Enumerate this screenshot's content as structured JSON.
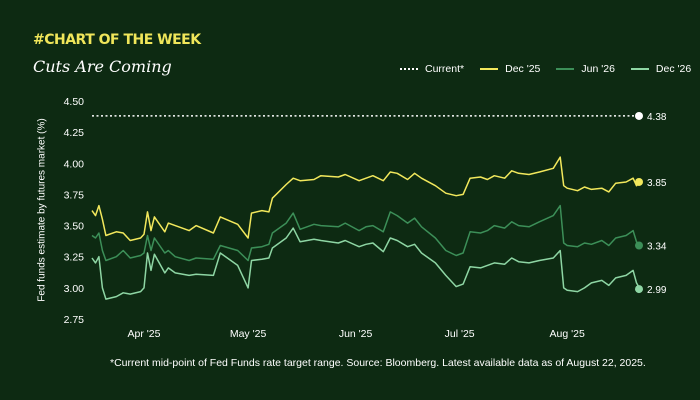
{
  "header": {
    "tag": "#CHART OF THE WEEK",
    "subtitle": "Cuts Are Coming"
  },
  "footnote": "*Current mid-point of Fed Funds rate target range. Source: Bloomberg. Latest available data as of August 22, 2025.",
  "colors": {
    "background": "#0d2a12",
    "current": "#ffffff",
    "dec25": "#f2e85c",
    "jun26": "#3c8f58",
    "dec26": "#8ed6a4"
  },
  "chart_data": {
    "type": "line",
    "ylabel": "Fed funds estimate by futures market (%)",
    "ylim": [
      2.75,
      4.5
    ],
    "yticks": [
      "4.50",
      "4.25",
      "4.00",
      "3.75",
      "3.50",
      "3.25",
      "3.00",
      "2.75"
    ],
    "xticks": [
      {
        "label": "Apr '25",
        "date": "2025-04-01"
      },
      {
        "label": "May '25",
        "date": "2025-05-01"
      },
      {
        "label": "Jun '25",
        "date": "2025-06-01"
      },
      {
        "label": "Jul '25",
        "date": "2025-07-01"
      },
      {
        "label": "Aug '25",
        "date": "2025-08-01"
      }
    ],
    "x_range": [
      "2025-03-17",
      "2025-08-22"
    ],
    "legend_position": "top-right",
    "grid": false,
    "series": [
      {
        "name": "Current*",
        "key": "current",
        "dashed": true,
        "end_label": "4.38",
        "points": [
          [
            "2025-03-17",
            4.38
          ],
          [
            "2025-08-22",
            4.38
          ]
        ]
      },
      {
        "name": "Dec '25",
        "key": "dec25",
        "end_label": "3.85",
        "points": [
          [
            "2025-03-17",
            3.62
          ],
          [
            "2025-03-18",
            3.58
          ],
          [
            "2025-03-19",
            3.66
          ],
          [
            "2025-03-20",
            3.55
          ],
          [
            "2025-03-21",
            3.42
          ],
          [
            "2025-03-24",
            3.45
          ],
          [
            "2025-03-26",
            3.44
          ],
          [
            "2025-03-28",
            3.38
          ],
          [
            "2025-03-31",
            3.4
          ],
          [
            "2025-04-01",
            3.43
          ],
          [
            "2025-04-02",
            3.61
          ],
          [
            "2025-04-03",
            3.46
          ],
          [
            "2025-04-04",
            3.57
          ],
          [
            "2025-04-07",
            3.45
          ],
          [
            "2025-04-08",
            3.52
          ],
          [
            "2025-04-10",
            3.5
          ],
          [
            "2025-04-14",
            3.46
          ],
          [
            "2025-04-16",
            3.5
          ],
          [
            "2025-04-21",
            3.44
          ],
          [
            "2025-04-23",
            3.57
          ],
          [
            "2025-04-28",
            3.51
          ],
          [
            "2025-05-01",
            3.4
          ],
          [
            "2025-05-02",
            3.6
          ],
          [
            "2025-05-05",
            3.62
          ],
          [
            "2025-05-07",
            3.61
          ],
          [
            "2025-05-08",
            3.72
          ],
          [
            "2025-05-12",
            3.83
          ],
          [
            "2025-05-14",
            3.88
          ],
          [
            "2025-05-16",
            3.86
          ],
          [
            "2025-05-20",
            3.87
          ],
          [
            "2025-05-22",
            3.9
          ],
          [
            "2025-05-27",
            3.89
          ],
          [
            "2025-05-29",
            3.91
          ],
          [
            "2025-06-02",
            3.86
          ],
          [
            "2025-06-04",
            3.88
          ],
          [
            "2025-06-06",
            3.9
          ],
          [
            "2025-06-09",
            3.86
          ],
          [
            "2025-06-11",
            3.93
          ],
          [
            "2025-06-13",
            3.92
          ],
          [
            "2025-06-16",
            3.87
          ],
          [
            "2025-06-18",
            3.92
          ],
          [
            "2025-06-20",
            3.88
          ],
          [
            "2025-06-24",
            3.82
          ],
          [
            "2025-06-27",
            3.76
          ],
          [
            "2025-06-30",
            3.74
          ],
          [
            "2025-07-02",
            3.75
          ],
          [
            "2025-07-04",
            3.88
          ],
          [
            "2025-07-07",
            3.89
          ],
          [
            "2025-07-09",
            3.87
          ],
          [
            "2025-07-11",
            3.9
          ],
          [
            "2025-07-14",
            3.88
          ],
          [
            "2025-07-16",
            3.94
          ],
          [
            "2025-07-18",
            3.92
          ],
          [
            "2025-07-21",
            3.91
          ],
          [
            "2025-07-24",
            3.93
          ],
          [
            "2025-07-28",
            3.96
          ],
          [
            "2025-07-30",
            4.05
          ],
          [
            "2025-07-31",
            3.82
          ],
          [
            "2025-08-01",
            3.8
          ],
          [
            "2025-08-04",
            3.78
          ],
          [
            "2025-08-06",
            3.81
          ],
          [
            "2025-08-08",
            3.79
          ],
          [
            "2025-08-11",
            3.8
          ],
          [
            "2025-08-13",
            3.77
          ],
          [
            "2025-08-15",
            3.84
          ],
          [
            "2025-08-18",
            3.85
          ],
          [
            "2025-08-20",
            3.88
          ],
          [
            "2025-08-21",
            3.82
          ],
          [
            "2025-08-22",
            3.85
          ]
        ]
      },
      {
        "name": "Jun '26",
        "key": "jun26",
        "end_label": "3.34",
        "points": [
          [
            "2025-03-17",
            3.42
          ],
          [
            "2025-03-18",
            3.4
          ],
          [
            "2025-03-19",
            3.44
          ],
          [
            "2025-03-20",
            3.3
          ],
          [
            "2025-03-21",
            3.22
          ],
          [
            "2025-03-24",
            3.25
          ],
          [
            "2025-03-26",
            3.3
          ],
          [
            "2025-03-28",
            3.24
          ],
          [
            "2025-03-31",
            3.26
          ],
          [
            "2025-04-01",
            3.28
          ],
          [
            "2025-04-02",
            3.42
          ],
          [
            "2025-04-03",
            3.3
          ],
          [
            "2025-04-04",
            3.4
          ],
          [
            "2025-04-07",
            3.28
          ],
          [
            "2025-04-08",
            3.3
          ],
          [
            "2025-04-10",
            3.25
          ],
          [
            "2025-04-14",
            3.22
          ],
          [
            "2025-04-16",
            3.24
          ],
          [
            "2025-04-21",
            3.23
          ],
          [
            "2025-04-23",
            3.34
          ],
          [
            "2025-04-28",
            3.3
          ],
          [
            "2025-05-01",
            3.22
          ],
          [
            "2025-05-02",
            3.32
          ],
          [
            "2025-05-05",
            3.33
          ],
          [
            "2025-05-07",
            3.35
          ],
          [
            "2025-05-08",
            3.44
          ],
          [
            "2025-05-12",
            3.52
          ],
          [
            "2025-05-14",
            3.6
          ],
          [
            "2025-05-16",
            3.47
          ],
          [
            "2025-05-20",
            3.51
          ],
          [
            "2025-05-22",
            3.5
          ],
          [
            "2025-05-27",
            3.49
          ],
          [
            "2025-05-29",
            3.52
          ],
          [
            "2025-06-02",
            3.46
          ],
          [
            "2025-06-04",
            3.49
          ],
          [
            "2025-06-06",
            3.5
          ],
          [
            "2025-06-09",
            3.45
          ],
          [
            "2025-06-11",
            3.61
          ],
          [
            "2025-06-13",
            3.58
          ],
          [
            "2025-06-16",
            3.52
          ],
          [
            "2025-06-18",
            3.56
          ],
          [
            "2025-06-20",
            3.49
          ],
          [
            "2025-06-24",
            3.4
          ],
          [
            "2025-06-27",
            3.3
          ],
          [
            "2025-06-30",
            3.26
          ],
          [
            "2025-07-02",
            3.28
          ],
          [
            "2025-07-04",
            3.45
          ],
          [
            "2025-07-07",
            3.44
          ],
          [
            "2025-07-09",
            3.46
          ],
          [
            "2025-07-11",
            3.5
          ],
          [
            "2025-07-14",
            3.48
          ],
          [
            "2025-07-16",
            3.53
          ],
          [
            "2025-07-18",
            3.5
          ],
          [
            "2025-07-21",
            3.49
          ],
          [
            "2025-07-24",
            3.53
          ],
          [
            "2025-07-28",
            3.58
          ],
          [
            "2025-07-30",
            3.66
          ],
          [
            "2025-07-31",
            3.36
          ],
          [
            "2025-08-01",
            3.34
          ],
          [
            "2025-08-04",
            3.33
          ],
          [
            "2025-08-06",
            3.36
          ],
          [
            "2025-08-08",
            3.35
          ],
          [
            "2025-08-11",
            3.38
          ],
          [
            "2025-08-13",
            3.34
          ],
          [
            "2025-08-15",
            3.4
          ],
          [
            "2025-08-18",
            3.42
          ],
          [
            "2025-08-20",
            3.46
          ],
          [
            "2025-08-21",
            3.37
          ],
          [
            "2025-08-22",
            3.34
          ]
        ]
      },
      {
        "name": "Dec '26",
        "key": "dec26",
        "end_label": "2.99",
        "points": [
          [
            "2025-03-17",
            3.24
          ],
          [
            "2025-03-18",
            3.2
          ],
          [
            "2025-03-19",
            3.25
          ],
          [
            "2025-03-20",
            3.0
          ],
          [
            "2025-03-21",
            2.91
          ],
          [
            "2025-03-24",
            2.93
          ],
          [
            "2025-03-26",
            2.96
          ],
          [
            "2025-03-28",
            2.95
          ],
          [
            "2025-03-31",
            2.97
          ],
          [
            "2025-04-01",
            3.0
          ],
          [
            "2025-04-02",
            3.28
          ],
          [
            "2025-04-03",
            3.14
          ],
          [
            "2025-04-04",
            3.27
          ],
          [
            "2025-04-07",
            3.12
          ],
          [
            "2025-04-08",
            3.16
          ],
          [
            "2025-04-10",
            3.12
          ],
          [
            "2025-04-14",
            3.1
          ],
          [
            "2025-04-16",
            3.11
          ],
          [
            "2025-04-21",
            3.1
          ],
          [
            "2025-04-23",
            3.28
          ],
          [
            "2025-04-28",
            3.18
          ],
          [
            "2025-05-01",
            3.0
          ],
          [
            "2025-05-02",
            3.22
          ],
          [
            "2025-05-05",
            3.23
          ],
          [
            "2025-05-07",
            3.24
          ],
          [
            "2025-05-08",
            3.32
          ],
          [
            "2025-05-12",
            3.4
          ],
          [
            "2025-05-14",
            3.48
          ],
          [
            "2025-05-16",
            3.37
          ],
          [
            "2025-05-20",
            3.39
          ],
          [
            "2025-05-22",
            3.38
          ],
          [
            "2025-05-27",
            3.36
          ],
          [
            "2025-05-29",
            3.38
          ],
          [
            "2025-06-02",
            3.33
          ],
          [
            "2025-06-04",
            3.35
          ],
          [
            "2025-06-06",
            3.36
          ],
          [
            "2025-06-09",
            3.29
          ],
          [
            "2025-06-11",
            3.4
          ],
          [
            "2025-06-13",
            3.38
          ],
          [
            "2025-06-16",
            3.33
          ],
          [
            "2025-06-18",
            3.35
          ],
          [
            "2025-06-20",
            3.28
          ],
          [
            "2025-06-24",
            3.2
          ],
          [
            "2025-06-27",
            3.1
          ],
          [
            "2025-06-30",
            3.01
          ],
          [
            "2025-07-02",
            3.03
          ],
          [
            "2025-07-04",
            3.17
          ],
          [
            "2025-07-07",
            3.16
          ],
          [
            "2025-07-09",
            3.18
          ],
          [
            "2025-07-11",
            3.2
          ],
          [
            "2025-07-14",
            3.19
          ],
          [
            "2025-07-16",
            3.24
          ],
          [
            "2025-07-18",
            3.21
          ],
          [
            "2025-07-21",
            3.2
          ],
          [
            "2025-07-24",
            3.22
          ],
          [
            "2025-07-28",
            3.24
          ],
          [
            "2025-07-30",
            3.3
          ],
          [
            "2025-07-31",
            3.0
          ],
          [
            "2025-08-01",
            2.98
          ],
          [
            "2025-08-04",
            2.97
          ],
          [
            "2025-08-06",
            3.0
          ],
          [
            "2025-08-08",
            3.04
          ],
          [
            "2025-08-11",
            3.06
          ],
          [
            "2025-08-13",
            3.02
          ],
          [
            "2025-08-15",
            3.08
          ],
          [
            "2025-08-18",
            3.1
          ],
          [
            "2025-08-20",
            3.14
          ],
          [
            "2025-08-21",
            3.04
          ],
          [
            "2025-08-22",
            2.99
          ]
        ]
      }
    ]
  }
}
